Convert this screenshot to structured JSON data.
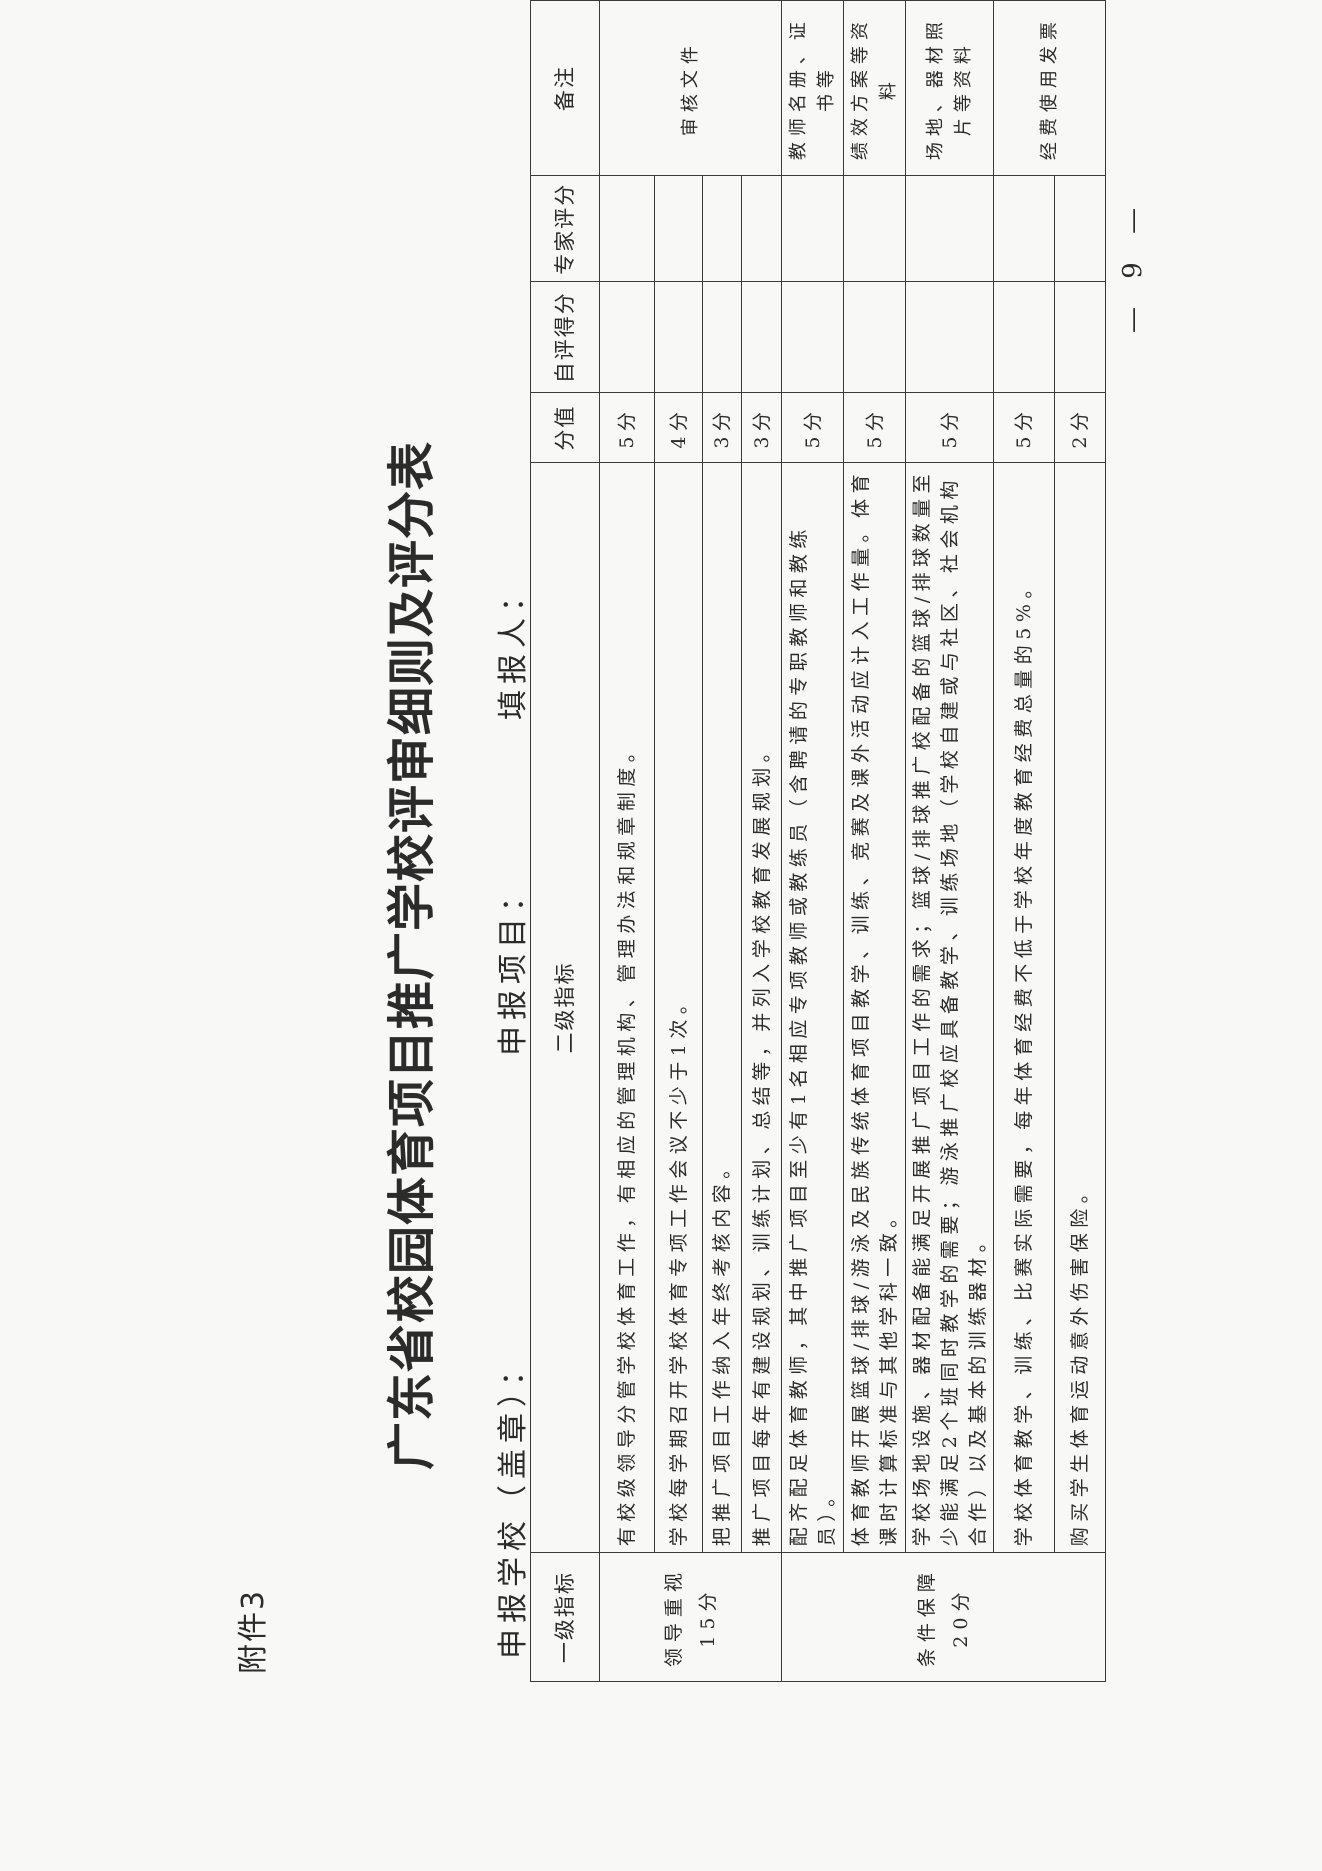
{
  "attachment_label": "附件3",
  "title": "广东省校园体育项目推广学校评审细则及评分表",
  "meta": {
    "school_label": "申报学校（盖章）：",
    "project_label": "申报项目：",
    "filler_label": "填报人："
  },
  "table": {
    "headers": [
      "一级指标",
      "二级指标",
      "分值",
      "自评得分",
      "专家评分",
      "备注"
    ],
    "categories": [
      {
        "name": "领导重视",
        "score": "15分"
      },
      {
        "name": "条件保障",
        "score": "20分"
      }
    ],
    "rows": [
      {
        "lines": [
          "有校级领导分管学校体育工作，有相应的管理机构、管理办法和规章制度。"
        ],
        "score": "5分"
      },
      {
        "lines": [
          "学校每学期召开学校体育专项工作会议不少于1次。"
        ],
        "score": "4分"
      },
      {
        "lines": [
          "把推广项目工作纳入年终考核内容。"
        ],
        "score": "3分"
      },
      {
        "lines": [
          "推广项目每年有建设规划、训练计划、总结等，并列入学校教育发展规划。"
        ],
        "score": "3分"
      },
      {
        "lines": [
          "配齐配足体育教师，其中推广项目至少有1名相应专项教师或教练员（含聘请的专职教师和教练",
          "员）。"
        ],
        "score": "5分"
      },
      {
        "lines": [
          "体育教师开展篮球/排球/游泳及民族传统体育项目教学、训练、竞赛及课外活动应计入工作量。体育",
          "课时计算标准与其他学科一致。"
        ],
        "score": "5分"
      },
      {
        "lines": [
          "学校场地设施、器材配备能满足开展推广项目工作的需求；篮球/排球推广校配备的篮球/排球数量至",
          "少能满足2个班同时教学的需要；游泳推广校应具备教学、训练场地（学校自建或与社区、社会机构",
          "合作）以及基本的训练器材。"
        ],
        "score": "5分"
      },
      {
        "lines": [
          "学校体育教学、训练、比赛实际需要，每年体育经费不低于学校年度教育经费总量的5%。"
        ],
        "score": "5分"
      },
      {
        "lines": [
          "购买学生体育运动意外伤害保险。"
        ],
        "score": "2分"
      }
    ],
    "notes": [
      "审核文件",
      "教师名册、证书等",
      "绩效方案等资料",
      "场地、器材照片等资料",
      "经费使用发票"
    ]
  },
  "page_number": "— 9 —"
}
